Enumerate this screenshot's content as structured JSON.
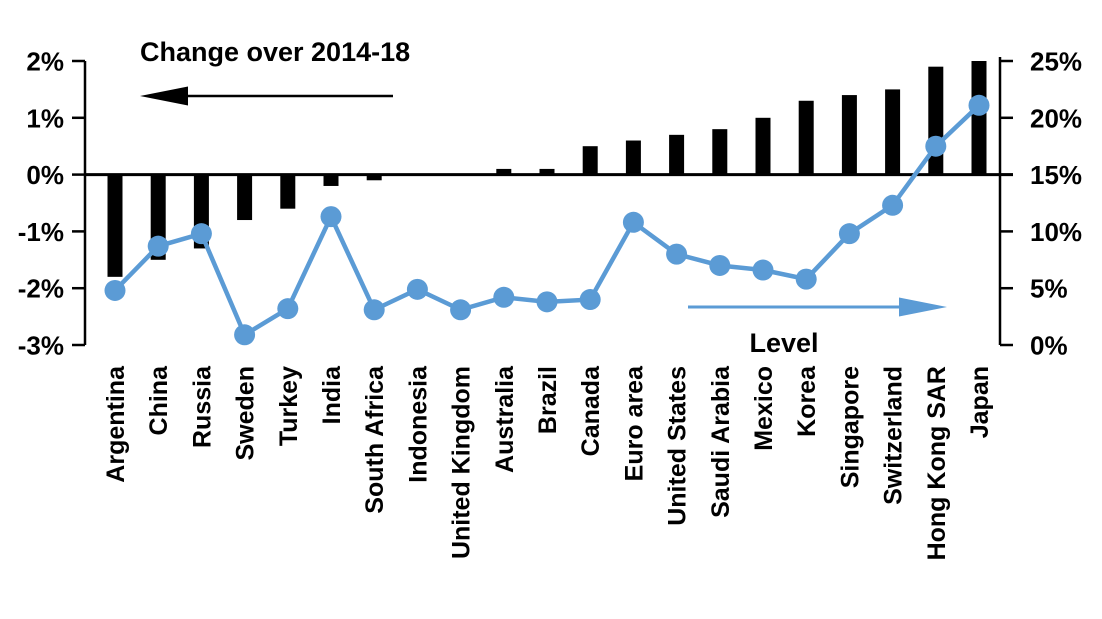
{
  "chart_data": {
    "type": "bar",
    "subtype": "dual-axis bar + line with markers",
    "title": "Change over 2014-18",
    "categories": [
      "Argentina",
      "China",
      "Russia",
      "Sweden",
      "Turkey",
      "India",
      "South Africa",
      "Indonesia",
      "United Kingdom",
      "Australia",
      "Brazil",
      "Canada",
      "Euro area",
      "United States",
      "Saudi Arabia",
      "Mexico",
      "Korea",
      "Singapore",
      "Switzerland",
      "Hong Kong SAR",
      "Japan"
    ],
    "series": [
      {
        "name": "Change over 2014-18",
        "type": "bar",
        "axis": "left",
        "color": "#000000",
        "values": [
          -1.8,
          -1.5,
          -1.3,
          -0.8,
          -0.6,
          -0.2,
          -0.1,
          0.0,
          0.0,
          0.1,
          0.1,
          0.5,
          0.6,
          0.7,
          0.8,
          1.0,
          1.3,
          1.4,
          1.5,
          1.9,
          2.0
        ]
      },
      {
        "name": "Level",
        "type": "line",
        "axis": "right",
        "color": "#5B9BD5",
        "values": [
          4.8,
          8.7,
          9.8,
          0.9,
          3.2,
          11.3,
          3.1,
          4.9,
          3.1,
          4.2,
          3.8,
          4.0,
          10.8,
          8.0,
          7.0,
          6.6,
          5.8,
          9.8,
          12.3,
          17.5,
          21.1
        ]
      }
    ],
    "left_axis": {
      "unit": "%",
      "range": [
        -3,
        2
      ],
      "ticks": [
        {
          "label": "2%",
          "value": 2
        },
        {
          "label": "1%",
          "value": 1
        },
        {
          "label": "0%",
          "value": 0
        },
        {
          "label": "-1%",
          "value": -1
        },
        {
          "label": "-2%",
          "value": -2
        },
        {
          "label": "-3%",
          "value": -3
        }
      ]
    },
    "right_axis": {
      "unit": "%",
      "range": [
        0,
        25
      ],
      "ticks": [
        {
          "label": "25%",
          "value": 25
        },
        {
          "label": "20%",
          "value": 20
        },
        {
          "label": "15%",
          "value": 15
        },
        {
          "label": "10%",
          "value": 10
        },
        {
          "label": "5%",
          "value": 5
        },
        {
          "label": "0%",
          "value": 0
        }
      ]
    },
    "annotations": {
      "left_arrow_label": "Change over 2014-18",
      "right_arrow_label": "Level",
      "left_arrow_direction": "left",
      "right_arrow_direction": "right"
    },
    "layout": {
      "grid": "off",
      "legend": "none",
      "x_labels_rotation_deg": -90,
      "bar_color": "#000000",
      "line_color": "#5B9BD5",
      "background": "#ffffff"
    }
  }
}
